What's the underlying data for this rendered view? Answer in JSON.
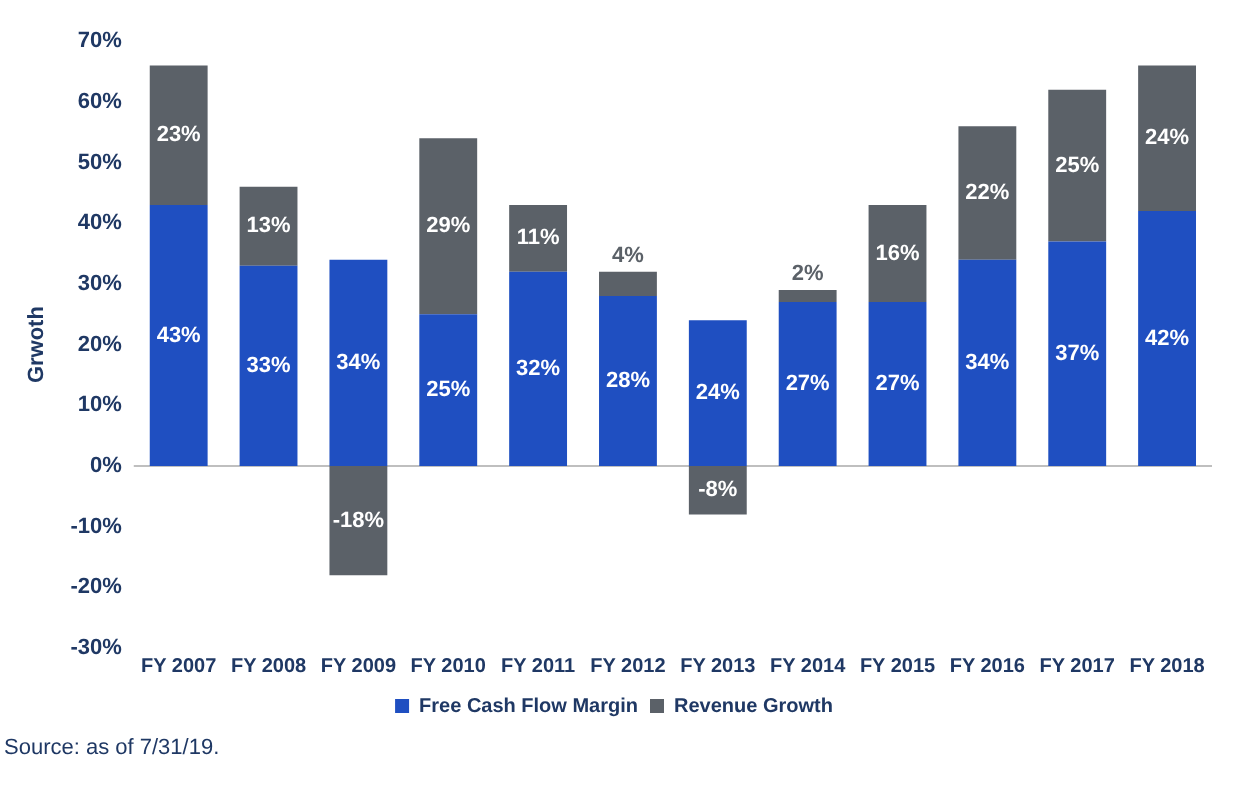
{
  "chart_data": {
    "type": "bar",
    "stacked": true,
    "ylabel": "Grwoth",
    "categories": [
      "FY 2007",
      "FY 2008",
      "FY 2009",
      "FY 2010",
      "FY 2011",
      "FY 2012",
      "FY 2013",
      "FY 2014",
      "FY 2015",
      "FY 2016",
      "FY 2017",
      "FY 2018"
    ],
    "series": [
      {
        "name": "Free Cash Flow Margin",
        "color": "#1f4fc1",
        "values": [
          43,
          33,
          34,
          25,
          32,
          28,
          24,
          27,
          27,
          34,
          37,
          42
        ],
        "value_labels": [
          "43%",
          "33%",
          "34%",
          "25%",
          "32%",
          "28%",
          "24%",
          "27%",
          "27%",
          "34%",
          "37%",
          "42%"
        ]
      },
      {
        "name": "Revenue Growth",
        "color": "#5b6168",
        "values": [
          23,
          13,
          -18,
          29,
          11,
          4,
          -8,
          2,
          16,
          22,
          25,
          24
        ],
        "value_labels": [
          "23%",
          "13%",
          "-18%",
          "29%",
          "11%",
          "4%",
          "-8%",
          "2%",
          "16%",
          "22%",
          "25%",
          "24%"
        ]
      }
    ],
    "ylim": [
      -30,
      70
    ],
    "yticks": [
      {
        "value": -30,
        "label": "-30%"
      },
      {
        "value": -20,
        "label": "-20%"
      },
      {
        "value": -10,
        "label": "-10%"
      },
      {
        "value": 0,
        "label": "0%"
      },
      {
        "value": 10,
        "label": "10%"
      },
      {
        "value": 20,
        "label": "20%"
      },
      {
        "value": 30,
        "label": "30%"
      },
      {
        "value": 40,
        "label": "40%"
      },
      {
        "value": 50,
        "label": "50%"
      },
      {
        "value": 60,
        "label": "60%"
      },
      {
        "value": 70,
        "label": "70%"
      }
    ],
    "grid": false,
    "legend": "bottom",
    "ref_lines": [
      {
        "axis": "y",
        "value": 0,
        "color": "#bfbfbf"
      }
    ],
    "annotations": [
      "Source: as of 7/31/19."
    ]
  }
}
